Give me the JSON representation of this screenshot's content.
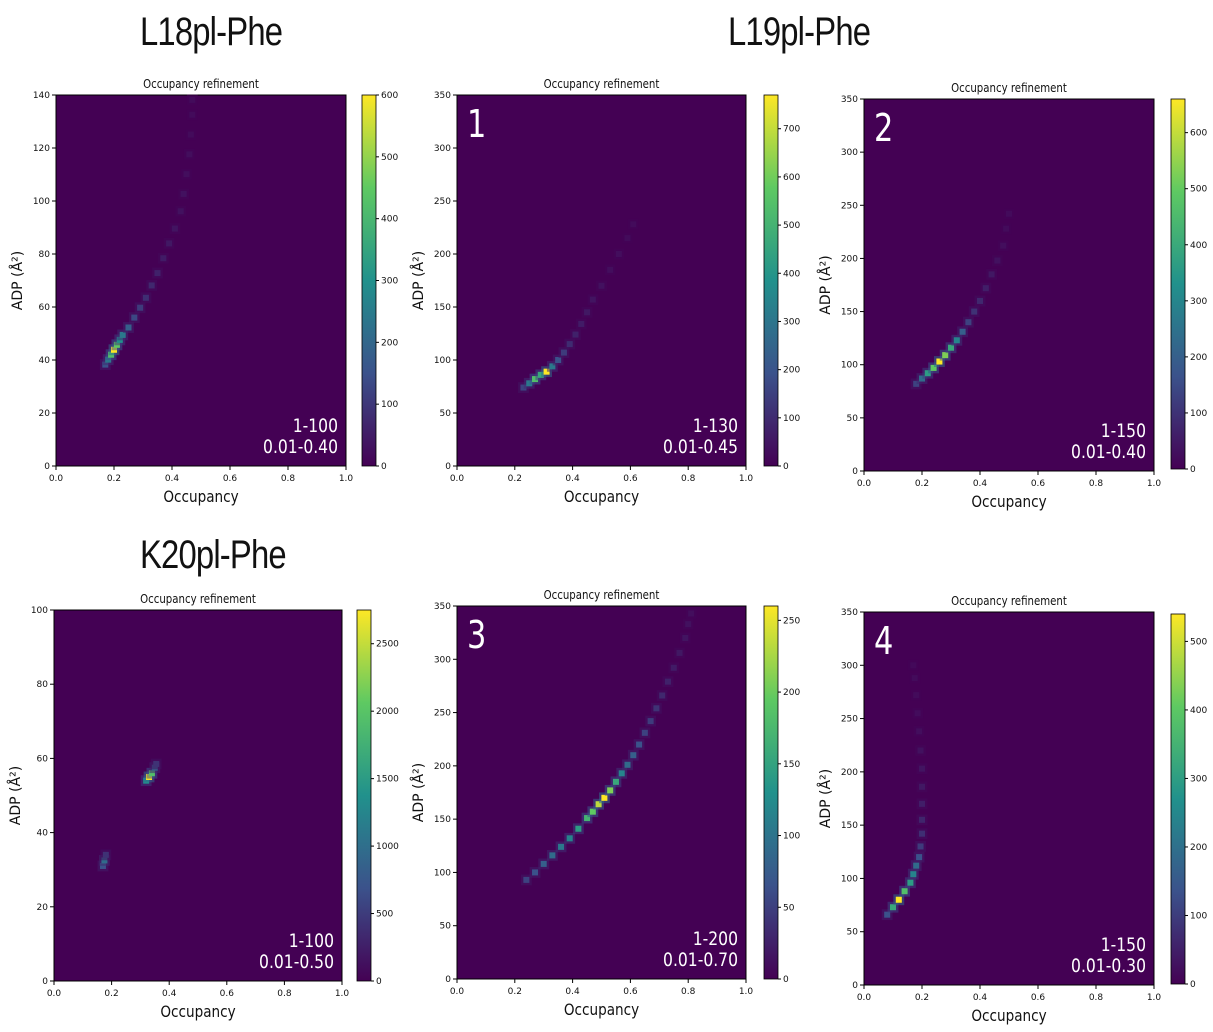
{
  "headings": {
    "row1_left": "L18pl-Phe",
    "row1_right": "L19pl-Phe",
    "row2_left": "K20pl-Phe"
  },
  "colors": {
    "background": "#440154",
    "colormap": [
      "#440154",
      "#3b528b",
      "#21918c",
      "#5ec962",
      "#fde725"
    ]
  },
  "chart_data": [
    {
      "type": "heatmap",
      "title": "Occupancy refinement",
      "xlabel": "Occupancy",
      "ylabel": "ADP (Å²)",
      "xlim": [
        0,
        1
      ],
      "ylim": [
        0,
        150
      ],
      "xticks": [
        "0.0",
        "0.2",
        "0.4",
        "0.6",
        "0.8",
        "1.0"
      ],
      "yticks": [
        "0",
        "20",
        "40",
        "60",
        "80",
        "100",
        "120",
        "140"
      ],
      "colorbar": {
        "range": [
          0,
          600
        ],
        "ticks": [
          "0",
          "100",
          "200",
          "300",
          "400",
          "500",
          "600"
        ]
      },
      "panel_label": "",
      "annotation": [
        "1-100",
        "0.01-0.40"
      ],
      "points": [
        [
          0.17,
          41,
          0.25
        ],
        [
          0.18,
          43,
          0.4
        ],
        [
          0.19,
          45,
          0.7
        ],
        [
          0.2,
          47,
          1.0
        ],
        [
          0.21,
          49,
          0.75
        ],
        [
          0.22,
          51,
          0.5
        ],
        [
          0.23,
          53,
          0.4
        ],
        [
          0.25,
          56,
          0.3
        ],
        [
          0.27,
          60,
          0.22
        ],
        [
          0.29,
          64,
          0.18
        ],
        [
          0.31,
          68,
          0.14
        ],
        [
          0.33,
          73,
          0.12
        ],
        [
          0.35,
          78,
          0.1
        ],
        [
          0.37,
          84,
          0.08
        ],
        [
          0.39,
          90,
          0.07
        ],
        [
          0.41,
          96,
          0.06
        ],
        [
          0.43,
          103,
          0.05
        ],
        [
          0.44,
          110,
          0.05
        ],
        [
          0.45,
          118,
          0.04
        ],
        [
          0.46,
          126,
          0.04
        ],
        [
          0.465,
          134,
          0.03
        ],
        [
          0.47,
          142,
          0.03
        ],
        [
          0.47,
          148,
          0.03
        ]
      ]
    },
    {
      "type": "heatmap",
      "title": "Occupancy refinement",
      "xlabel": "Occupancy",
      "ylabel": "ADP (Å²)",
      "xlim": [
        0,
        1
      ],
      "ylim": [
        0,
        350
      ],
      "xticks": [
        "0.0",
        "0.2",
        "0.4",
        "0.6",
        "0.8",
        "1.0"
      ],
      "yticks": [
        "0",
        "50",
        "100",
        "150",
        "200",
        "250",
        "300",
        "350"
      ],
      "colorbar": {
        "range": [
          0,
          770
        ],
        "ticks": [
          "0",
          "100",
          "200",
          "300",
          "400",
          "500",
          "600",
          "700"
        ]
      },
      "panel_label": "1",
      "annotation": [
        "1-130",
        "0.01-0.45"
      ],
      "points": [
        [
          0.23,
          74,
          0.2
        ],
        [
          0.25,
          78,
          0.4
        ],
        [
          0.27,
          82,
          0.7
        ],
        [
          0.29,
          86,
          0.6
        ],
        [
          0.31,
          89,
          1.0
        ],
        [
          0.33,
          94,
          0.4
        ],
        [
          0.35,
          100,
          0.25
        ],
        [
          0.37,
          107,
          0.18
        ],
        [
          0.39,
          115,
          0.13
        ],
        [
          0.41,
          124,
          0.1
        ],
        [
          0.43,
          134,
          0.08
        ],
        [
          0.45,
          145,
          0.07
        ],
        [
          0.47,
          157,
          0.06
        ],
        [
          0.5,
          170,
          0.05
        ],
        [
          0.53,
          185,
          0.04
        ],
        [
          0.56,
          200,
          0.04
        ],
        [
          0.59,
          215,
          0.03
        ],
        [
          0.61,
          228,
          0.03
        ]
      ]
    },
    {
      "type": "heatmap",
      "title": "Occupancy refinement",
      "xlabel": "Occupancy",
      "ylabel": "ADP (Å²)",
      "xlim": [
        0,
        1
      ],
      "ylim": [
        0,
        350
      ],
      "xticks": [
        "0.0",
        "0.2",
        "0.4",
        "0.6",
        "0.8",
        "1.0"
      ],
      "yticks": [
        "0",
        "50",
        "100",
        "150",
        "200",
        "250",
        "300",
        "350"
      ],
      "colorbar": {
        "range": [
          0,
          660
        ],
        "ticks": [
          "0",
          "100",
          "200",
          "300",
          "400",
          "500",
          "600"
        ]
      },
      "panel_label": "2",
      "annotation": [
        "1-150",
        "0.01-0.40"
      ],
      "points": [
        [
          0.18,
          82,
          0.2
        ],
        [
          0.2,
          87,
          0.35
        ],
        [
          0.22,
          92,
          0.55
        ],
        [
          0.24,
          97,
          0.75
        ],
        [
          0.26,
          103,
          1.0
        ],
        [
          0.28,
          109,
          0.8
        ],
        [
          0.3,
          116,
          0.6
        ],
        [
          0.32,
          123,
          0.45
        ],
        [
          0.34,
          131,
          0.3
        ],
        [
          0.36,
          140,
          0.2
        ],
        [
          0.38,
          150,
          0.15
        ],
        [
          0.4,
          160,
          0.12
        ],
        [
          0.42,
          172,
          0.09
        ],
        [
          0.44,
          185,
          0.07
        ],
        [
          0.46,
          198,
          0.05
        ],
        [
          0.48,
          212,
          0.04
        ],
        [
          0.49,
          228,
          0.03
        ],
        [
          0.5,
          242,
          0.03
        ]
      ]
    },
    {
      "type": "heatmap",
      "title": "Occupancy refinement",
      "xlabel": "Occupancy",
      "ylabel": "ADP (Å²)",
      "xlim": [
        0,
        1
      ],
      "ylim": [
        0,
        100
      ],
      "xticks": [
        "0.0",
        "0.2",
        "0.4",
        "0.6",
        "0.8",
        "1.0"
      ],
      "yticks": [
        "0",
        "20",
        "40",
        "60",
        "80",
        "100"
      ],
      "colorbar": {
        "range": [
          0,
          2750
        ],
        "ticks": [
          "0",
          "500",
          "1000",
          "1500",
          "2000",
          "2500"
        ]
      },
      "panel_label": "",
      "annotation": [
        "1-100",
        "0.01-0.50"
      ],
      "points": [
        [
          0.17,
          31,
          0.25
        ],
        [
          0.175,
          32.5,
          0.35
        ],
        [
          0.18,
          34,
          0.15
        ],
        [
          0.32,
          54,
          0.5
        ],
        [
          0.33,
          55,
          1.0
        ],
        [
          0.34,
          56,
          0.7
        ],
        [
          0.35,
          57.5,
          0.3
        ],
        [
          0.355,
          58.5,
          0.15
        ]
      ]
    },
    {
      "type": "heatmap",
      "title": "Occupancy refinement",
      "xlabel": "Occupancy",
      "ylabel": "ADP (Å²)",
      "xlim": [
        0,
        1
      ],
      "ylim": [
        0,
        350
      ],
      "xticks": [
        "0.0",
        "0.2",
        "0.4",
        "0.6",
        "0.8",
        "1.0"
      ],
      "yticks": [
        "0",
        "50",
        "100",
        "150",
        "200",
        "250",
        "300",
        "350"
      ],
      "colorbar": {
        "range": [
          0,
          260
        ],
        "ticks": [
          "0",
          "50",
          "100",
          "150",
          "200",
          "250"
        ]
      },
      "panel_label": "3",
      "annotation": [
        "1-200",
        "0.01-0.70"
      ],
      "points": [
        [
          0.24,
          93,
          0.2
        ],
        [
          0.27,
          100,
          0.25
        ],
        [
          0.3,
          108,
          0.3
        ],
        [
          0.33,
          116,
          0.35
        ],
        [
          0.36,
          124,
          0.4
        ],
        [
          0.39,
          132,
          0.45
        ],
        [
          0.42,
          141,
          0.55
        ],
        [
          0.45,
          151,
          0.65
        ],
        [
          0.47,
          157,
          0.75
        ],
        [
          0.49,
          164,
          0.9
        ],
        [
          0.51,
          170,
          1.0
        ],
        [
          0.53,
          177,
          0.8
        ],
        [
          0.55,
          185,
          0.6
        ],
        [
          0.57,
          193,
          0.45
        ],
        [
          0.59,
          201,
          0.35
        ],
        [
          0.61,
          210,
          0.3
        ],
        [
          0.63,
          220,
          0.25
        ],
        [
          0.65,
          231,
          0.2
        ],
        [
          0.67,
          242,
          0.18
        ],
        [
          0.69,
          254,
          0.15
        ],
        [
          0.71,
          266,
          0.12
        ],
        [
          0.73,
          279,
          0.1
        ],
        [
          0.75,
          292,
          0.08
        ],
        [
          0.77,
          306,
          0.07
        ],
        [
          0.79,
          320,
          0.06
        ],
        [
          0.8,
          333,
          0.05
        ],
        [
          0.81,
          343,
          0.04
        ]
      ]
    },
    {
      "type": "heatmap",
      "title": "Occupancy refinement",
      "xlabel": "Occupancy",
      "ylabel": "ADP (Å²)",
      "xlim": [
        0,
        1
      ],
      "ylim": [
        0,
        350
      ],
      "xticks": [
        "0.0",
        "0.2",
        "0.4",
        "0.6",
        "0.8",
        "1.0"
      ],
      "yticks": [
        "0",
        "50",
        "100",
        "150",
        "200",
        "250",
        "300",
        "350"
      ],
      "colorbar": {
        "range": [
          0,
          540
        ],
        "ticks": [
          "0",
          "100",
          "200",
          "300",
          "400",
          "500"
        ]
      },
      "panel_label": "4",
      "annotation": [
        "1-150",
        "0.01-0.30"
      ],
      "points": [
        [
          0.08,
          66,
          0.25
        ],
        [
          0.1,
          73,
          0.6
        ],
        [
          0.12,
          80,
          1.0
        ],
        [
          0.14,
          88,
          0.7
        ],
        [
          0.16,
          96,
          0.55
        ],
        [
          0.17,
          104,
          0.45
        ],
        [
          0.18,
          112,
          0.35
        ],
        [
          0.19,
          120,
          0.25
        ],
        [
          0.195,
          130,
          0.18
        ],
        [
          0.2,
          142,
          0.14
        ],
        [
          0.2,
          155,
          0.11
        ],
        [
          0.2,
          170,
          0.09
        ],
        [
          0.2,
          186,
          0.07
        ],
        [
          0.2,
          203,
          0.06
        ],
        [
          0.195,
          220,
          0.05
        ],
        [
          0.19,
          238,
          0.04
        ],
        [
          0.185,
          255,
          0.035
        ],
        [
          0.18,
          272,
          0.03
        ],
        [
          0.175,
          288,
          0.03
        ],
        [
          0.17,
          300,
          0.025
        ]
      ]
    }
  ]
}
